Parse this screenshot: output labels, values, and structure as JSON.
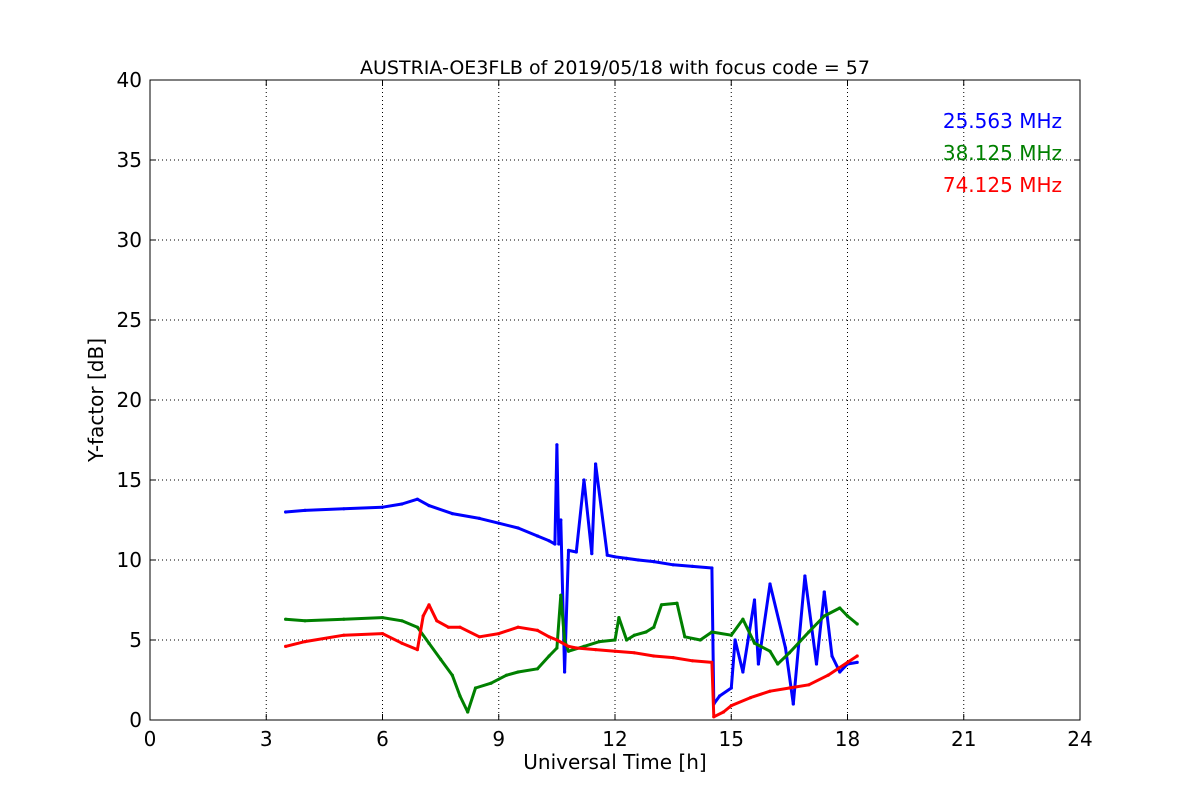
{
  "chart_data": {
    "type": "line",
    "title": "AUSTRIA-OE3FLB of 2019/05/18 with focus code = 57",
    "xlabel": "Universal Time [h]",
    "ylabel": "Y-factor [dB]",
    "xlim": [
      0,
      24
    ],
    "ylim": [
      0,
      40
    ],
    "xticks": [
      0,
      3,
      6,
      9,
      12,
      15,
      18,
      21,
      24
    ],
    "yticks": [
      0,
      5,
      10,
      15,
      20,
      25,
      30,
      35,
      40
    ],
    "grid": true,
    "legend_placement": "top-right",
    "series": [
      {
        "name": "25.563 MHz",
        "color": "#0000ff",
        "x": [
          3.5,
          4.0,
          5.0,
          6.0,
          6.5,
          6.9,
          7.2,
          7.8,
          8.5,
          9.0,
          9.5,
          10.0,
          10.3,
          10.45,
          10.5,
          10.55,
          10.6,
          10.7,
          10.8,
          11.0,
          11.2,
          11.4,
          11.5,
          11.8,
          12.0,
          12.3,
          12.6,
          13.0,
          13.5,
          14.0,
          14.5,
          14.55,
          14.7,
          15.0,
          15.1,
          15.3,
          15.6,
          15.7,
          16.0,
          16.4,
          16.6,
          16.9,
          17.2,
          17.4,
          17.6,
          17.8,
          18.0,
          18.25
        ],
        "y": [
          13.0,
          13.1,
          13.2,
          13.3,
          13.5,
          13.8,
          13.4,
          12.9,
          12.6,
          12.3,
          12.0,
          11.5,
          11.2,
          11.0,
          17.2,
          11.0,
          12.5,
          3.0,
          10.6,
          10.5,
          15.0,
          10.4,
          16.0,
          10.3,
          10.2,
          10.1,
          10.0,
          9.9,
          9.7,
          9.6,
          9.5,
          1.0,
          1.5,
          2.0,
          5.0,
          3.0,
          7.5,
          3.5,
          8.5,
          4.5,
          1.0,
          9.0,
          3.5,
          8.0,
          4.0,
          3.0,
          3.5,
          3.6
        ]
      },
      {
        "name": "38.125 MHz",
        "color": "#008000",
        "x": [
          3.5,
          4.0,
          5.0,
          6.0,
          6.5,
          6.9,
          7.2,
          7.5,
          7.8,
          8.0,
          8.2,
          8.4,
          8.8,
          9.2,
          9.5,
          10.0,
          10.3,
          10.5,
          10.6,
          10.7,
          10.8,
          11.2,
          11.6,
          12.0,
          12.1,
          12.3,
          12.5,
          12.8,
          13.0,
          13.2,
          13.6,
          13.8,
          14.2,
          14.5,
          15.0,
          15.3,
          15.6,
          16.0,
          16.2,
          16.5,
          17.0,
          17.4,
          17.8,
          18.0,
          18.25
        ],
        "y": [
          6.3,
          6.2,
          6.3,
          6.4,
          6.2,
          5.8,
          4.8,
          3.8,
          2.8,
          1.5,
          0.5,
          2.0,
          2.3,
          2.8,
          3.0,
          3.2,
          4.0,
          4.5,
          7.8,
          5.0,
          4.3,
          4.6,
          4.9,
          5.0,
          6.4,
          5.0,
          5.3,
          5.5,
          5.8,
          7.2,
          7.3,
          5.2,
          5.0,
          5.5,
          5.3,
          6.3,
          4.8,
          4.3,
          3.5,
          4.2,
          5.5,
          6.5,
          7.0,
          6.5,
          6.0
        ]
      },
      {
        "name": "74.125 MHz",
        "color": "#ff0000",
        "x": [
          3.5,
          4.0,
          5.0,
          6.0,
          6.5,
          6.9,
          7.05,
          7.2,
          7.4,
          7.7,
          8.0,
          8.5,
          9.0,
          9.5,
          10.0,
          10.3,
          10.5,
          10.8,
          11.0,
          11.5,
          12.0,
          12.5,
          13.0,
          13.5,
          14.0,
          14.5,
          14.55,
          14.8,
          15.0,
          15.5,
          16.0,
          16.5,
          17.0,
          17.5,
          18.0,
          18.25
        ],
        "y": [
          4.6,
          4.9,
          5.3,
          5.4,
          4.8,
          4.4,
          6.5,
          7.2,
          6.2,
          5.8,
          5.8,
          5.2,
          5.4,
          5.8,
          5.6,
          5.2,
          5.0,
          4.6,
          4.5,
          4.4,
          4.3,
          4.2,
          4.0,
          3.9,
          3.7,
          3.6,
          0.2,
          0.5,
          0.9,
          1.4,
          1.8,
          2.0,
          2.2,
          2.8,
          3.6,
          4.0
        ]
      }
    ]
  }
}
